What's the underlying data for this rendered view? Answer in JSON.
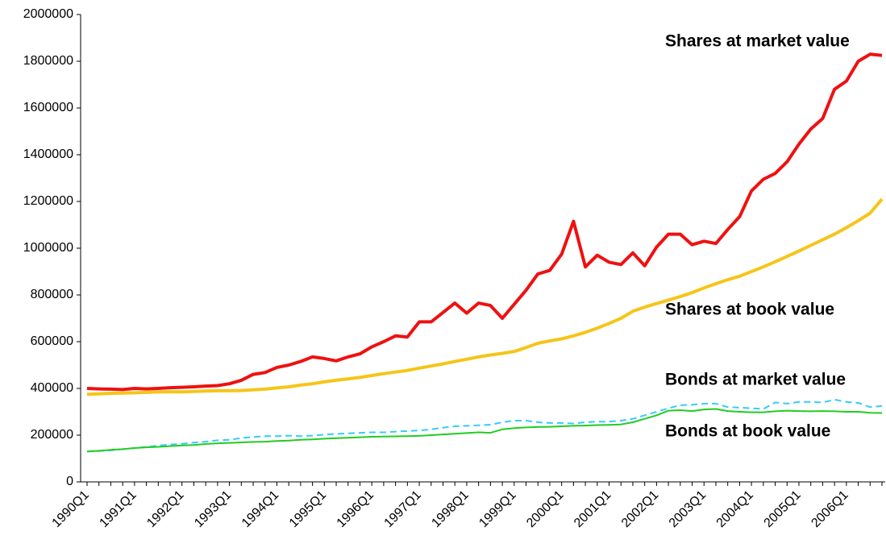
{
  "chart_data": {
    "type": "line",
    "categories": [
      "1990Q1",
      null,
      null,
      null,
      "1991Q1",
      null,
      null,
      null,
      "1992Q1",
      null,
      null,
      null,
      "1993Q1",
      null,
      null,
      null,
      "1994Q1",
      null,
      null,
      null,
      "1995Q1",
      null,
      null,
      null,
      "1996Q1",
      null,
      null,
      null,
      "1997Q1",
      null,
      null,
      null,
      "1998Q1",
      null,
      null,
      null,
      "1999Q1",
      null,
      null,
      null,
      "2000Q1",
      null,
      null,
      null,
      "2001Q1",
      null,
      null,
      null,
      "2002Q1",
      null,
      null,
      null,
      "2003Q1",
      null,
      null,
      null,
      "2004Q1",
      null,
      null,
      null,
      "2005Q1",
      null,
      null,
      null,
      "2006Q1",
      null,
      null,
      null
    ],
    "series": [
      {
        "name": "Shares at market value",
        "color": "#ee1111",
        "style": "solid",
        "values": [
          400000,
          398000,
          397000,
          395000,
          400000,
          398000,
          400000,
          403000,
          405000,
          407000,
          410000,
          412000,
          420000,
          435000,
          460000,
          468000,
          490000,
          500000,
          515000,
          535000,
          528000,
          518000,
          535000,
          548000,
          578000,
          600000,
          625000,
          620000,
          685000,
          685000,
          725000,
          765000,
          722000,
          765000,
          755000,
          700000,
          760000,
          820000,
          890000,
          905000,
          975000,
          1115000,
          920000,
          970000,
          940000,
          930000,
          980000,
          925000,
          1005000,
          1060000,
          1060000,
          1015000,
          1030000,
          1020000,
          1080000,
          1135000,
          1245000,
          1295000,
          1320000,
          1370000,
          1445000,
          1510000,
          1555000,
          1680000,
          1715000,
          1800000,
          1830000,
          1825000
        ]
      },
      {
        "name": "Shares at book value",
        "color": "#f5c518",
        "style": "solid",
        "values": [
          375000,
          377000,
          379000,
          380000,
          381000,
          383000,
          385000,
          386000,
          385000,
          387000,
          389000,
          390000,
          390000,
          391000,
          394000,
          397000,
          402000,
          407000,
          414000,
          420000,
          428000,
          435000,
          441000,
          447000,
          455000,
          463000,
          470000,
          477000,
          487000,
          496000,
          505000,
          515000,
          525000,
          535000,
          543000,
          550000,
          558000,
          575000,
          593000,
          603000,
          612000,
          625000,
          640000,
          658000,
          678000,
          700000,
          730000,
          748000,
          763000,
          778000,
          793000,
          810000,
          830000,
          848000,
          865000,
          880000,
          900000,
          920000,
          942000,
          965000,
          988000,
          1012000,
          1036000,
          1060000,
          1088000,
          1118000,
          1150000,
          1210000
        ]
      },
      {
        "name": "Bonds at market value",
        "color": "#33ccff",
        "style": "dashed",
        "values": [
          130000,
          132000,
          135000,
          140000,
          145000,
          150000,
          155000,
          160000,
          163000,
          168000,
          172000,
          178000,
          180000,
          188000,
          192000,
          196000,
          196000,
          198000,
          196000,
          198000,
          202000,
          205000,
          208000,
          210000,
          212000,
          212000,
          215000,
          218000,
          220000,
          225000,
          232000,
          238000,
          240000,
          242000,
          245000,
          255000,
          262000,
          262000,
          255000,
          252000,
          252000,
          250000,
          255000,
          258000,
          258000,
          262000,
          270000,
          285000,
          300000,
          315000,
          328000,
          330000,
          335000,
          335000,
          320000,
          318000,
          315000,
          312000,
          340000,
          335000,
          342000,
          342000,
          340000,
          352000,
          342000,
          338000,
          320000,
          325000
        ]
      },
      {
        "name": "Bonds at book value",
        "color": "#22cc22",
        "style": "solid",
        "values": [
          130000,
          133000,
          137000,
          140000,
          145000,
          148000,
          150000,
          153000,
          156000,
          158000,
          162000,
          165000,
          167000,
          169000,
          171000,
          172000,
          175000,
          177000,
          180000,
          182000,
          185000,
          187000,
          189000,
          191000,
          193000,
          194000,
          195000,
          196000,
          197000,
          200000,
          203000,
          206000,
          209000,
          212000,
          210000,
          225000,
          230000,
          233000,
          235000,
          236000,
          238000,
          240000,
          241000,
          243000,
          244000,
          246000,
          255000,
          270000,
          285000,
          305000,
          307000,
          303000,
          310000,
          312000,
          303000,
          300000,
          298000,
          298000,
          302000,
          305000,
          303000,
          302000,
          303000,
          302000,
          300000,
          300000,
          296000,
          295000
        ]
      }
    ],
    "ylim": [
      0,
      2000000
    ],
    "yticks": [
      0,
      200000,
      400000,
      600000,
      800000,
      1000000,
      1200000,
      1400000,
      1600000,
      1800000,
      2000000
    ],
    "grid": false
  }
}
